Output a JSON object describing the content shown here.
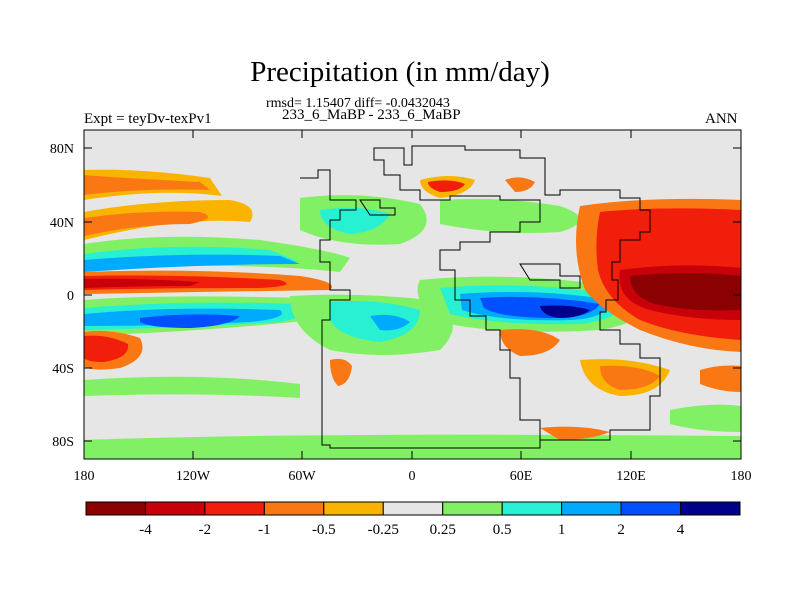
{
  "title": "Precipitation (in mm/day)",
  "stats_line": "rmsd= 1.15407 diff= -0.0432043",
  "left_label": "Expt = teyDv-texPv1",
  "center_label": "233_6_MaBP - 233_6_MaBP",
  "right_label": "ANN",
  "lat_ticks": [
    "80N",
    "40N",
    "0",
    "40S",
    "80S"
  ],
  "lon_ticks": [
    "180",
    "120W",
    "60W",
    "0",
    "60E",
    "120E",
    "180"
  ],
  "colorbar": {
    "labels": [
      "-4",
      "-2",
      "-1",
      "-0.5",
      "-0.25",
      "0.25",
      "0.5",
      "1",
      "2",
      "4"
    ],
    "colors": [
      "#8b0000",
      "#c8000a",
      "#f01e0a",
      "#fa7814",
      "#fab400",
      "#e6e6e6",
      "#82f064",
      "#28f0d2",
      "#00aaff",
      "#0050ff",
      "#00008c"
    ]
  },
  "background_color": "#e6e6e6"
}
